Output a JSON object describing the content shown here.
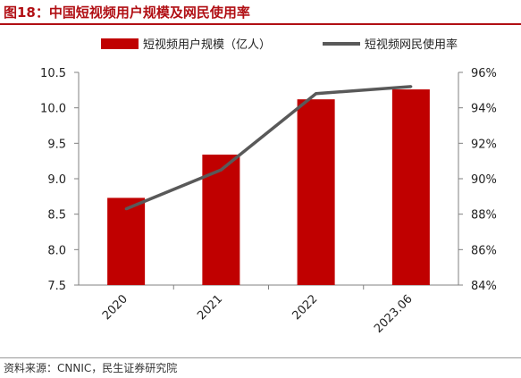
{
  "header": {
    "title": "图18：中国短视频用户规模及网民使用率"
  },
  "footer": {
    "source": "资料来源：CNNIC，民生证券研究院"
  },
  "chart_data": {
    "type": "bar",
    "categories": [
      "2020",
      "2021",
      "2022",
      "2023.06"
    ],
    "series": [
      {
        "name": "短视频用户规模（亿人）",
        "type": "bar",
        "axis": "left",
        "color": "#c00000",
        "values": [
          8.73,
          9.34,
          10.12,
          10.26
        ]
      },
      {
        "name": "短视频网民使用率",
        "type": "line",
        "axis": "right",
        "color": "#595959",
        "values": [
          88.3,
          90.5,
          94.8,
          95.2
        ]
      }
    ],
    "y_left": {
      "lim": [
        7.5,
        10.5
      ],
      "ticks": [
        "7.5",
        "8.0",
        "8.5",
        "9.0",
        "9.5",
        "10.0",
        "10.5"
      ]
    },
    "y_right": {
      "lim": [
        84,
        96
      ],
      "ticks": [
        "84%",
        "86%",
        "88%",
        "90%",
        "92%",
        "94%",
        "96%"
      ]
    },
    "legend": "top",
    "grid": false
  }
}
